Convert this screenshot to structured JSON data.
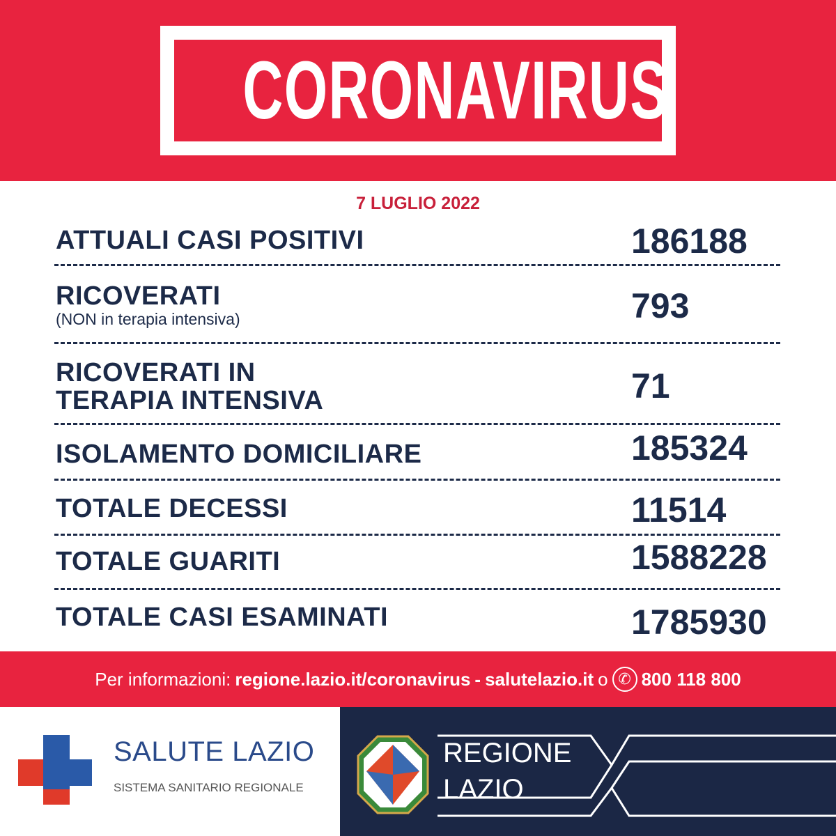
{
  "header": {
    "title": "CORONAVIRUS",
    "date": "7 LUGLIO 2022"
  },
  "rows": [
    {
      "label": "ATTUALI CASI POSITIVI",
      "value": "186188"
    },
    {
      "label": "RICOVERATI",
      "sublabel": "(NON in terapia intensiva)",
      "value": "793"
    },
    {
      "label_line1": "RICOVERATI IN",
      "label_line2": "TERAPIA INTENSIVA",
      "value": "71"
    },
    {
      "label": "ISOLAMENTO DOMICILIARE",
      "value": "185324"
    },
    {
      "label": "TOTALE DECESSI",
      "value": "11514"
    },
    {
      "label": "TOTALE GUARITI",
      "value": "1588228"
    },
    {
      "label": "TOTALE CASI ESAMINATI",
      "value": "1785930"
    }
  ],
  "info": {
    "prefix": "Per informazioni:",
    "link1": "regione.lazio.it/coronavirus",
    "sep": "-",
    "link2": "salutelazio.it",
    "or": "o",
    "phone_icon": "phone-icon",
    "phone": "800 118 800"
  },
  "footer": {
    "salute_title": "SALUTE LAZIO",
    "salute_sub": "SISTEMA SANITARIO REGIONALE",
    "regione_line1": "REGIONE",
    "regione_line2": "LAZIO"
  },
  "colors": {
    "red": "#e8233f",
    "navy": "#1b2745",
    "text": "#1c2a48",
    "blue": "#2a5aa8",
    "cross_red": "#e03a2a"
  }
}
